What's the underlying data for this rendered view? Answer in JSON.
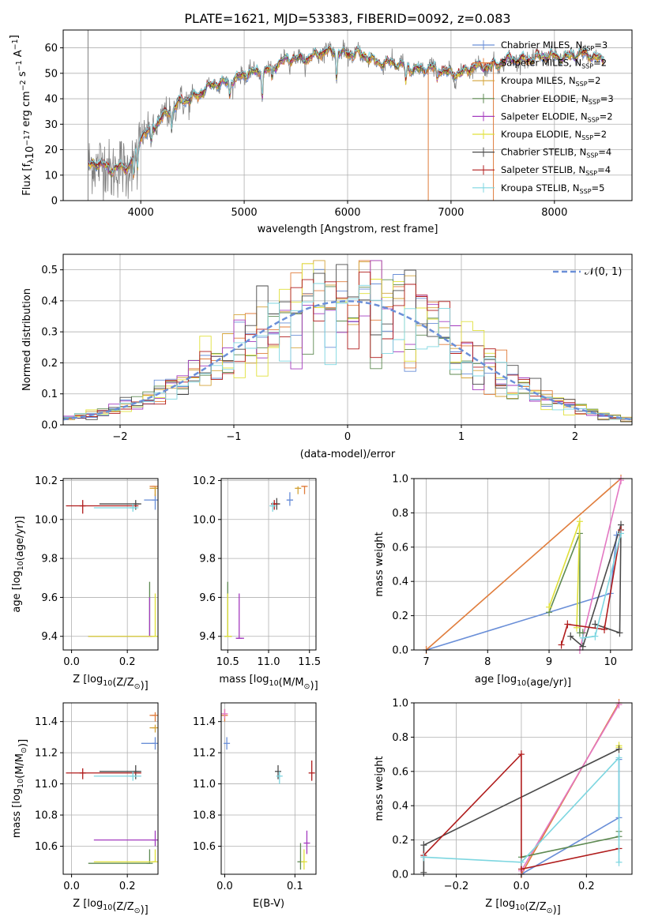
{
  "title": "PLATE=1621, MJD=53383, FIBERID=0092, z=0.083",
  "models": [
    {
      "name": "Chabrier MILES",
      "nssp": "3",
      "color": "#6a8fd8"
    },
    {
      "name": "Salpeter MILES",
      "nssp": "2",
      "color": "#e07d3c"
    },
    {
      "name": "Kroupa MILES",
      "nssp": "2",
      "color": "#d4a43a"
    },
    {
      "name": "Chabrier ELODIE",
      "nssp": "3",
      "color": "#5e8a52"
    },
    {
      "name": "Salpeter ELODIE",
      "nssp": "2",
      "color": "#a43bbf"
    },
    {
      "name": "Kroupa ELODIE",
      "nssp": "2",
      "color": "#e0e03a"
    },
    {
      "name": "Chabrier STELIB",
      "nssp": "4",
      "color": "#4a4a4a"
    },
    {
      "name": "Salpeter STELIB",
      "nssp": "4",
      "color": "#b01c1c"
    },
    {
      "name": "Kroupa STELIB",
      "nssp": "5",
      "color": "#7dd6e0"
    }
  ],
  "legend_nssp_label": "N",
  "legend_nssp_sub": "SSP",
  "normal_label": "𝒩(0, 1)",
  "chart_data": [
    {
      "id": "spectrum",
      "type": "line",
      "xlabel": "wavelength [Angstrom, rest frame]",
      "ylabel": "Flux [f_λ 10^-17 erg cm^-2 s^-1 A^-1]",
      "xlim": [
        3250,
        8750
      ],
      "ylim": [
        0,
        67
      ],
      "xticks": [
        4000,
        5000,
        6000,
        7000,
        8000
      ],
      "yticks": [
        0,
        10,
        20,
        30,
        40,
        50,
        60
      ],
      "data_color": "#808080",
      "continuum": [
        [
          3490,
          14
        ],
        [
          3600,
          14
        ],
        [
          3700,
          12
        ],
        [
          3800,
          14
        ],
        [
          3870,
          13
        ],
        [
          3960,
          18
        ],
        [
          4000,
          25
        ],
        [
          4100,
          28
        ],
        [
          4200,
          33
        ],
        [
          4300,
          35
        ],
        [
          4400,
          39
        ],
        [
          4500,
          41
        ],
        [
          4700,
          45
        ],
        [
          4900,
          48
        ],
        [
          5100,
          50
        ],
        [
          5300,
          53
        ],
        [
          5500,
          56
        ],
        [
          5700,
          57
        ],
        [
          5900,
          59
        ],
        [
          6100,
          57
        ],
        [
          6300,
          55
        ],
        [
          6500,
          53
        ],
        [
          6700,
          52
        ],
        [
          6900,
          51
        ],
        [
          7100,
          50
        ],
        [
          7300,
          53
        ],
        [
          7500,
          54
        ],
        [
          7700,
          56
        ],
        [
          7900,
          56
        ],
        [
          8100,
          57
        ],
        [
          8300,
          57
        ],
        [
          8500,
          56
        ]
      ],
      "absorption": [
        [
          3934,
          9
        ],
        [
          3968,
          8
        ],
        [
          4102,
          6
        ],
        [
          4300,
          8
        ],
        [
          4861,
          6
        ],
        [
          5175,
          10
        ],
        [
          5270,
          5
        ],
        [
          5893,
          12
        ],
        [
          6563,
          7
        ],
        [
          6865,
          5
        ]
      ],
      "drops": [
        [
          6780,
          "#e07d3c"
        ],
        [
          7410,
          "#e07d3c"
        ]
      ],
      "gray_spikes": [
        [
          3490,
          0,
          67
        ]
      ]
    },
    {
      "id": "residuals",
      "type": "histogram",
      "xlabel": "(data-model)/error",
      "ylabel": "Normed distribution",
      "xlim": [
        -2.5,
        2.5
      ],
      "ylim": [
        0,
        0.55
      ],
      "xticks": [
        -2,
        -1,
        0,
        1,
        2
      ],
      "xticklabels": [
        "−2",
        "−1",
        "0",
        "1",
        "2"
      ],
      "yticks": [
        0,
        0.1,
        0.2,
        0.3,
        0.4,
        0.5
      ],
      "yticklabels": [
        "0.0",
        "0.1",
        "0.2",
        "0.3",
        "0.4",
        "0.5"
      ],
      "bin_width": 0.1,
      "normal": {
        "mean": 0,
        "sigma": 1,
        "color": "#6a8fd8"
      }
    },
    {
      "id": "age-vs-Z",
      "type": "scatter",
      "xlabel": "Z [log10(Z/Z⊙)]",
      "ylabel": "age  [log10(age/yr)]",
      "xlim": [
        -0.03,
        0.31
      ],
      "ylim": [
        9.33,
        10.21
      ],
      "xticks": [
        0.0,
        0.2
      ],
      "xticklabels": [
        "0.0",
        "0.2"
      ],
      "yticks": [
        9.4,
        9.6,
        9.8,
        10.0,
        10.2
      ],
      "yticklabels": [
        "9.4",
        "9.6",
        "9.8",
        "10.0",
        "10.2"
      ],
      "points": [
        {
          "model": 0,
          "x": 0.3,
          "y": 10.1,
          "xlo": 0.26,
          "xhi": 0.3,
          "ylo": 10.05,
          "yhi": 10.13
        },
        {
          "model": 1,
          "x": 0.3,
          "y": 10.17,
          "xlo": 0.28,
          "xhi": 0.3,
          "ylo": 10.12,
          "yhi": 10.17
        },
        {
          "model": 2,
          "x": 0.3,
          "y": 10.16,
          "xlo": 0.28,
          "xhi": 0.3,
          "ylo": 10.12,
          "yhi": 10.17
        },
        {
          "model": 3,
          "x": 0.28,
          "y": 9.4,
          "xlo": 0.06,
          "xhi": 0.28,
          "ylo": 9.4,
          "yhi": 9.68
        },
        {
          "model": 4,
          "x": 0.28,
          "y": 9.4,
          "xlo": 0.06,
          "xhi": 0.28,
          "ylo": 9.4,
          "yhi": 9.6
        },
        {
          "model": 5,
          "x": 0.3,
          "y": 9.4,
          "xlo": 0.06,
          "xhi": 0.3,
          "ylo": 9.4,
          "yhi": 9.62
        },
        {
          "model": 6,
          "x": 0.23,
          "y": 10.08,
          "xlo": 0.1,
          "xhi": 0.25,
          "ylo": 10.05,
          "yhi": 10.1
        },
        {
          "model": 7,
          "x": 0.04,
          "y": 10.07,
          "xlo": -0.02,
          "xhi": 0.24,
          "ylo": 10.03,
          "yhi": 10.1
        },
        {
          "model": 8,
          "x": 0.22,
          "y": 10.06,
          "xlo": 0.08,
          "xhi": 0.24,
          "ylo": 10.04,
          "yhi": 10.08
        }
      ]
    },
    {
      "id": "age-vs-mass",
      "type": "scatter",
      "xlabel": "mass [log10(M/M⊙)]",
      "ylabel": "",
      "xlim": [
        10.42,
        11.58
      ],
      "ylim": [
        9.33,
        10.21
      ],
      "xticks": [
        10.5,
        11.0,
        11.5
      ],
      "xticklabels": [
        "10.5",
        "11.0",
        "11.5"
      ],
      "yticks": [
        9.4,
        9.6,
        9.8,
        10.0,
        10.2
      ],
      "yticklabels": [
        "9.4",
        "9.6",
        "9.8",
        "10.0",
        "10.2"
      ],
      "points": [
        {
          "model": 0,
          "x": 11.26,
          "y": 10.1,
          "xlo": 11.22,
          "xhi": 11.3,
          "ylo": 10.07,
          "yhi": 10.14
        },
        {
          "model": 1,
          "x": 11.44,
          "y": 10.17,
          "xlo": 11.4,
          "xhi": 11.46,
          "ylo": 10.13,
          "yhi": 10.17
        },
        {
          "model": 2,
          "x": 11.36,
          "y": 10.16,
          "xlo": 11.34,
          "xhi": 11.38,
          "ylo": 10.13,
          "yhi": 10.17
        },
        {
          "model": 3,
          "x": 10.5,
          "y": 9.4,
          "xlo": 10.47,
          "xhi": 10.55,
          "ylo": 9.4,
          "yhi": 9.68
        },
        {
          "model": 4,
          "x": 10.64,
          "y": 9.39,
          "xlo": 10.6,
          "xhi": 10.7,
          "ylo": 9.39,
          "yhi": 9.62
        },
        {
          "model": 5,
          "x": 10.5,
          "y": 9.4,
          "xlo": 10.48,
          "xhi": 10.55,
          "ylo": 9.4,
          "yhi": 9.62
        },
        {
          "model": 6,
          "x": 11.1,
          "y": 10.08,
          "xlo": 11.05,
          "xhi": 11.14,
          "ylo": 10.05,
          "yhi": 10.11
        },
        {
          "model": 7,
          "x": 11.07,
          "y": 10.08,
          "xlo": 11.03,
          "xhi": 11.1,
          "ylo": 10.05,
          "yhi": 10.1
        },
        {
          "model": 8,
          "x": 11.05,
          "y": 10.07,
          "xlo": 11.02,
          "xhi": 11.08,
          "ylo": 10.04,
          "yhi": 10.09
        }
      ]
    },
    {
      "id": "weight-vs-age",
      "type": "line",
      "xlabel": "age  [log10(age/yr)]",
      "ylabel": "mass weight",
      "xlim": [
        6.8,
        10.35
      ],
      "ylim": [
        0,
        1.0
      ],
      "xticks": [
        7,
        8,
        9,
        10
      ],
      "xticklabels": [
        "7",
        "8",
        "9",
        "10"
      ],
      "yticks": [
        0,
        0.2,
        0.4,
        0.6,
        0.8,
        1.0
      ],
      "yticklabels": [
        "0.0",
        "0.2",
        "0.4",
        "0.6",
        "0.8",
        "1.0"
      ],
      "series": [
        {
          "model": 0,
          "points": [
            [
              7.0,
              0.0
            ],
            [
              10.0,
              0.33
            ],
            [
              10.1,
              0.67
            ]
          ]
        },
        {
          "model": 1,
          "points": [
            [
              7.0,
              0.0
            ],
            [
              10.17,
              1.0
            ]
          ]
        },
        {
          "model": 4,
          "points": [
            [
              9.5,
              0.0
            ],
            [
              10.17,
              0.99
            ]
          ],
          "color": "#e377c2"
        },
        {
          "model": 3,
          "points": [
            [
              9.0,
              0.22
            ],
            [
              9.5,
              0.68
            ],
            [
              9.5,
              0.1
            ],
            [
              9.55,
              0.1
            ]
          ]
        },
        {
          "model": 5,
          "points": [
            [
              9.0,
              0.25
            ],
            [
              9.5,
              0.75
            ],
            [
              9.45,
              0.13
            ]
          ]
        },
        {
          "model": 6,
          "points": [
            [
              9.35,
              0.08
            ],
            [
              9.55,
              0.02
            ],
            [
              10.17,
              0.73
            ],
            [
              10.15,
              0.1
            ],
            [
              9.75,
              0.15
            ]
          ]
        },
        {
          "model": 7,
          "points": [
            [
              9.2,
              0.03
            ],
            [
              9.3,
              0.15
            ],
            [
              9.9,
              0.12
            ],
            [
              10.17,
              0.7
            ]
          ]
        },
        {
          "model": 8,
          "points": [
            [
              9.55,
              0.07
            ],
            [
              9.75,
              0.08
            ],
            [
              10.17,
              0.68
            ]
          ]
        }
      ]
    },
    {
      "id": "mass-vs-Z",
      "type": "scatter",
      "xlabel": "Z [log10(Z/Z⊙)]",
      "ylabel": "mass [log10(M/M⊙)]",
      "xlim": [
        -0.03,
        0.31
      ],
      "ylim": [
        10.42,
        11.52
      ],
      "xticks": [
        0.0,
        0.2
      ],
      "xticklabels": [
        "0.0",
        "0.2"
      ],
      "yticks": [
        10.6,
        10.8,
        11.0,
        11.2,
        11.4
      ],
      "yticklabels": [
        "10.6",
        "10.8",
        "11.0",
        "11.2",
        "11.4"
      ],
      "points": [
        {
          "model": 0,
          "x": 0.3,
          "y": 11.26,
          "xlo": 0.25,
          "xhi": 0.3,
          "ylo": 11.22,
          "yhi": 11.3
        },
        {
          "model": 1,
          "x": 0.3,
          "y": 11.44,
          "xlo": 0.28,
          "xhi": 0.3,
          "ylo": 11.4,
          "yhi": 11.46
        },
        {
          "model": 2,
          "x": 0.3,
          "y": 11.36,
          "xlo": 0.28,
          "xhi": 0.3,
          "ylo": 11.33,
          "yhi": 11.38
        },
        {
          "model": 3,
          "x": 0.28,
          "y": 10.49,
          "xlo": 0.06,
          "xhi": 0.28,
          "ylo": 10.49,
          "yhi": 10.58
        },
        {
          "model": 4,
          "x": 0.3,
          "y": 10.64,
          "xlo": 0.08,
          "xhi": 0.3,
          "ylo": 10.6,
          "yhi": 10.7
        },
        {
          "model": 5,
          "x": 0.3,
          "y": 10.5,
          "xlo": 0.08,
          "xhi": 0.3,
          "ylo": 10.5,
          "yhi": 10.58
        },
        {
          "model": 6,
          "x": 0.23,
          "y": 11.08,
          "xlo": 0.1,
          "xhi": 0.25,
          "ylo": 11.03,
          "yhi": 11.12
        },
        {
          "model": 7,
          "x": 0.04,
          "y": 11.07,
          "xlo": -0.02,
          "xhi": 0.25,
          "ylo": 11.03,
          "yhi": 11.1
        },
        {
          "model": 8,
          "x": 0.22,
          "y": 11.05,
          "xlo": 0.08,
          "xhi": 0.25,
          "ylo": 11.02,
          "yhi": 11.08
        }
      ]
    },
    {
      "id": "mass-vs-EBV",
      "type": "scatter",
      "xlabel": "E(B-V)",
      "ylabel": "",
      "xlim": [
        -0.005,
        0.13
      ],
      "ylim": [
        10.42,
        11.52
      ],
      "xticks": [
        0.0,
        0.1
      ],
      "xticklabels": [
        "0.0",
        "0.1"
      ],
      "yticks": [
        10.6,
        10.8,
        11.0,
        11.2,
        11.4
      ],
      "yticklabels": [
        "10.6",
        "10.8",
        "11.0",
        "11.2",
        "11.4"
      ],
      "points": [
        {
          "model": 0,
          "x": 0.003,
          "y": 11.26,
          "xlo": 0.003,
          "xhi": 0.003,
          "ylo": 11.22,
          "yhi": 11.3
        },
        {
          "model": 1,
          "x": 0.0,
          "y": 11.44,
          "xlo": 0.0,
          "xhi": 0.0,
          "ylo": 11.4,
          "yhi": 11.48
        },
        {
          "model": 4,
          "x": 0.0,
          "y": 11.45,
          "xlo": 0.0,
          "xhi": 0.0,
          "ylo": 11.42,
          "yhi": 11.48,
          "color": "#e377c2"
        },
        {
          "model": 3,
          "x": 0.108,
          "y": 10.5,
          "xlo": 0.108,
          "xhi": 0.108,
          "ylo": 10.45,
          "yhi": 10.62
        },
        {
          "model": 4,
          "x": 0.117,
          "y": 10.62,
          "xlo": 0.117,
          "xhi": 0.117,
          "ylo": 10.55,
          "yhi": 10.7
        },
        {
          "model": 5,
          "x": 0.113,
          "y": 10.5,
          "xlo": 0.113,
          "xhi": 0.113,
          "ylo": 10.45,
          "yhi": 10.58
        },
        {
          "model": 6,
          "x": 0.076,
          "y": 11.08,
          "xlo": 0.076,
          "xhi": 0.076,
          "ylo": 11.03,
          "yhi": 11.12
        },
        {
          "model": 7,
          "x": 0.124,
          "y": 11.07,
          "xlo": 0.124,
          "xhi": 0.124,
          "ylo": 11.02,
          "yhi": 11.15
        },
        {
          "model": 8,
          "x": 0.078,
          "y": 11.05,
          "xlo": 0.078,
          "xhi": 0.078,
          "ylo": 11.0,
          "yhi": 11.08
        }
      ]
    },
    {
      "id": "weight-vs-Z",
      "type": "line",
      "xlabel": "Z [log10(Z/Z⊙)]",
      "ylabel": "mass weight",
      "xlim": [
        -0.33,
        0.34
      ],
      "ylim": [
        0,
        1.0
      ],
      "xticks": [
        -0.2,
        0.0,
        0.2
      ],
      "xticklabels": [
        "−0.2",
        "0.0",
        "0.2"
      ],
      "yticks": [
        0,
        0.2,
        0.4,
        0.6,
        0.8,
        1.0
      ],
      "yticklabels": [
        "0.0",
        "0.2",
        "0.4",
        "0.6",
        "0.8",
        "1.0"
      ],
      "series": [
        {
          "model": 0,
          "points": [
            [
              0.0,
              0.0
            ],
            [
              0.3,
              0.33
            ],
            [
              0.3,
              0.67
            ]
          ]
        },
        {
          "model": 1,
          "points": [
            [
              0.0,
              0.0
            ],
            [
              0.3,
              1.0
            ]
          ]
        },
        {
          "model": 4,
          "points": [
            [
              0.0,
              0.02
            ],
            [
              0.3,
              0.99
            ]
          ],
          "color": "#e377c2"
        },
        {
          "model": 3,
          "points": [
            [
              0.0,
              0.1
            ],
            [
              0.3,
              0.22
            ],
            [
              0.3,
              0.25
            ]
          ]
        },
        {
          "model": 5,
          "points": [
            [
              0.3,
              0.75
            ],
            [
              0.3,
              0.74
            ]
          ]
        },
        {
          "model": 6,
          "points": [
            [
              -0.3,
              0.01
            ],
            [
              -0.3,
              0.17
            ],
            [
              0.3,
              0.73
            ]
          ]
        },
        {
          "model": 7,
          "points": [
            [
              -0.3,
              0.11
            ],
            [
              0.0,
              0.7
            ],
            [
              0.0,
              0.03
            ],
            [
              0.3,
              0.15
            ]
          ]
        },
        {
          "model": 8,
          "points": [
            [
              -0.3,
              0.1
            ],
            [
              0.0,
              0.07
            ],
            [
              0.3,
              0.68
            ],
            [
              0.3,
              0.07
            ]
          ]
        }
      ]
    }
  ]
}
